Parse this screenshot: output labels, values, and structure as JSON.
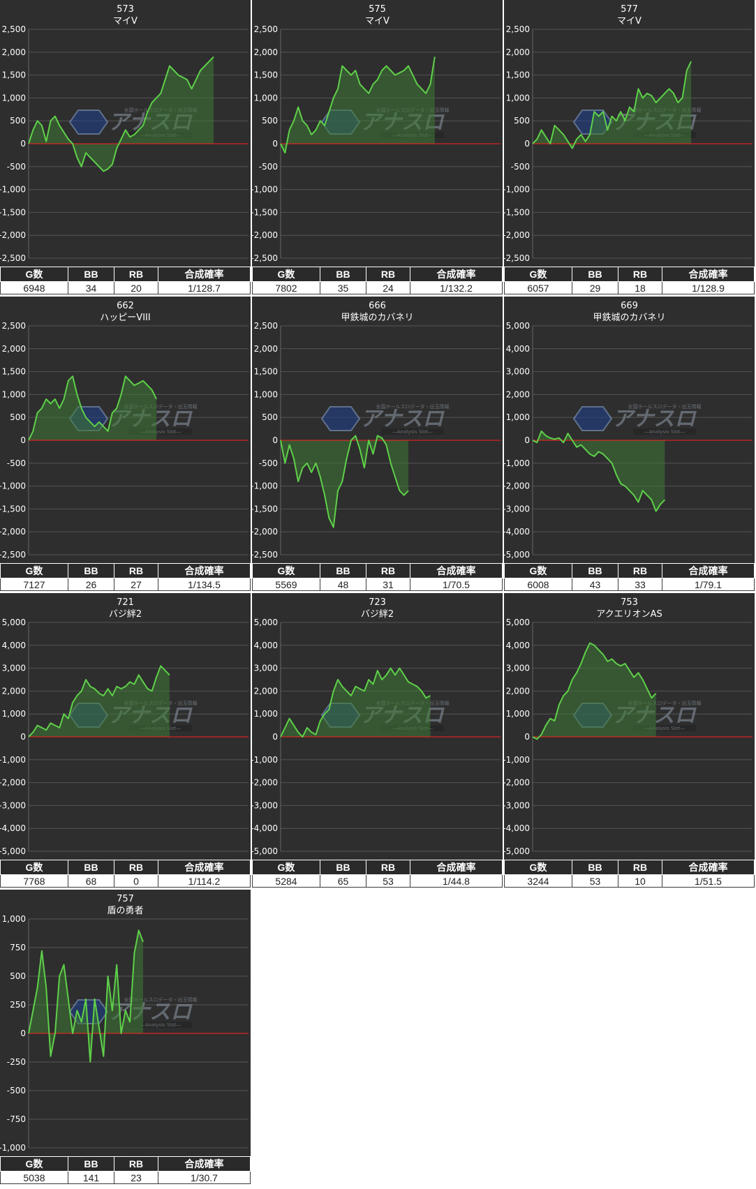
{
  "headers": {
    "games": "G数",
    "bb": "BB",
    "rb": "RB",
    "rate": "合成確率"
  },
  "watermark": {
    "logo_text": "アナスロ",
    "tagline": "全国ホールスロデータ・出玉情報",
    "sub": "—Analysis Slot—"
  },
  "colors": {
    "background": "#2e2e2e",
    "line": "#5fd04a",
    "fill": "#3e7a34",
    "zero_line": "#ff2020",
    "grid": "#555555"
  },
  "chart_data": [
    {
      "type": "area",
      "machine_number": "573",
      "machine_name": "マイV",
      "ylim": [
        -2500,
        2500
      ],
      "yticks": [
        2500,
        2000,
        1500,
        1000,
        500,
        0,
        -500,
        -1000,
        -1500,
        -2000,
        -2500
      ],
      "stats": {
        "games": "6948",
        "bb": "34",
        "rb": "20",
        "rate": "1/128.7"
      },
      "values": [
        0,
        300,
        500,
        400,
        50,
        500,
        600,
        400,
        250,
        100,
        0,
        -300,
        -500,
        -200,
        -300,
        -400,
        -500,
        -600,
        -550,
        -450,
        -100,
        100,
        300,
        150,
        200,
        300,
        400,
        700,
        900,
        1000,
        1100,
        1400,
        1700,
        1600,
        1500,
        1450,
        1400,
        1200,
        1400,
        1600,
        1700,
        1800,
        1900
      ]
    },
    {
      "type": "area",
      "machine_number": "575",
      "machine_name": "マイV",
      "ylim": [
        -2500,
        2500
      ],
      "yticks": [
        2500,
        2000,
        1500,
        1000,
        500,
        0,
        -500,
        -1000,
        -1500,
        -2000,
        -2500
      ],
      "stats": {
        "games": "7802",
        "bb": "35",
        "rb": "24",
        "rate": "1/132.2"
      },
      "values": [
        0,
        -200,
        300,
        500,
        800,
        500,
        400,
        200,
        300,
        500,
        400,
        700,
        1000,
        1200,
        1700,
        1600,
        1500,
        1600,
        1300,
        1200,
        1100,
        1300,
        1400,
        1600,
        1700,
        1600,
        1500,
        1550,
        1600,
        1700,
        1500,
        1300,
        1200,
        1100,
        1300,
        1900
      ]
    },
    {
      "type": "area",
      "machine_number": "577",
      "machine_name": "マイV",
      "ylim": [
        -2500,
        2500
      ],
      "yticks": [
        2500,
        2000,
        1500,
        1000,
        500,
        0,
        -500,
        -1000,
        -1500,
        -2000,
        -2500
      ],
      "stats": {
        "games": "6057",
        "bb": "29",
        "rb": "18",
        "rate": "1/128.9"
      },
      "values": [
        0,
        100,
        300,
        150,
        0,
        400,
        300,
        200,
        50,
        -100,
        100,
        200,
        50,
        200,
        700,
        600,
        700,
        300,
        600,
        500,
        700,
        500,
        800,
        700,
        1200,
        1000,
        1100,
        1050,
        900,
        1000,
        1100,
        1200,
        1100,
        900,
        1000,
        1600,
        1800
      ]
    },
    {
      "type": "area",
      "machine_number": "662",
      "machine_name": "ハッピーVIII",
      "ylim": [
        -2500,
        2500
      ],
      "yticks": [
        2500,
        2000,
        1500,
        1000,
        500,
        0,
        -500,
        -1000,
        -1500,
        -2000,
        -2500
      ],
      "stats": {
        "games": "7127",
        "bb": "26",
        "rb": "27",
        "rate": "1/134.5"
      },
      "values": [
        0,
        200,
        600,
        700,
        900,
        800,
        900,
        700,
        900,
        1300,
        1400,
        1000,
        700,
        500,
        400,
        300,
        400,
        300,
        200,
        600,
        700,
        1000,
        1400,
        1300,
        1200,
        1250,
        1300,
        1200,
        1100,
        900
      ]
    },
    {
      "type": "area",
      "machine_number": "666",
      "machine_name": "甲鉄城のカバネリ",
      "ylim": [
        -2500,
        2500
      ],
      "yticks": [
        2500,
        2000,
        1500,
        1000,
        500,
        0,
        -500,
        -1000,
        -1500,
        -2000,
        -2500
      ],
      "stats": {
        "games": "5569",
        "bb": "48",
        "rb": "31",
        "rate": "1/70.5"
      },
      "values": [
        0,
        -500,
        -100,
        -400,
        -900,
        -600,
        -500,
        -700,
        -500,
        -800,
        -1200,
        -1700,
        -1900,
        -1100,
        -900,
        -400,
        0,
        100,
        -200,
        -600,
        0,
        -300,
        100,
        50,
        -100,
        -500,
        -800,
        -1100,
        -1200,
        -1100
      ]
    },
    {
      "type": "area",
      "machine_number": "669",
      "machine_name": "甲鉄城のカバネリ",
      "ylim": [
        -5000,
        5000
      ],
      "yticks": [
        5000,
        4000,
        3000,
        2000,
        1000,
        0,
        -1000,
        -2000,
        -3000,
        -4000,
        -5000
      ],
      "stats": {
        "games": "6008",
        "bb": "43",
        "rb": "33",
        "rate": "1/79.1"
      },
      "values": [
        0,
        -100,
        400,
        200,
        100,
        50,
        100,
        -100,
        300,
        0,
        -300,
        -200,
        -400,
        -600,
        -700,
        -500,
        -600,
        -800,
        -1000,
        -1500,
        -1900,
        -2000,
        -2200,
        -2400,
        -2700,
        -2200,
        -2400,
        -2600,
        -3100,
        -2800,
        -2600
      ]
    },
    {
      "type": "area",
      "machine_number": "721",
      "machine_name": "バジ絆2",
      "ylim": [
        -5000,
        5000
      ],
      "yticks": [
        5000,
        4000,
        3000,
        2000,
        1000,
        0,
        -1000,
        -2000,
        -3000,
        -4000,
        -5000
      ],
      "stats": {
        "games": "7768",
        "bb": "68",
        "rb": "0",
        "rate": "1/114.2"
      },
      "values": [
        0,
        200,
        500,
        400,
        300,
        600,
        500,
        400,
        1000,
        800,
        1500,
        1800,
        2000,
        2500,
        2200,
        2100,
        1900,
        1800,
        2100,
        1800,
        2200,
        2100,
        2200,
        2400,
        2300,
        2700,
        2400,
        2100,
        2000,
        2600,
        3100,
        2900,
        2700
      ]
    },
    {
      "type": "area",
      "machine_number": "723",
      "machine_name": "バジ絆2",
      "ylim": [
        -5000,
        5000
      ],
      "yticks": [
        5000,
        4000,
        3000,
        2000,
        1000,
        0,
        -1000,
        -2000,
        -3000,
        -4000,
        -5000
      ],
      "stats": {
        "games": "5284",
        "bb": "65",
        "rb": "53",
        "rate": "1/44.8"
      },
      "values": [
        0,
        400,
        800,
        500,
        200,
        0,
        400,
        200,
        100,
        700,
        1000,
        1200,
        2000,
        2500,
        2200,
        2000,
        1800,
        2200,
        2100,
        2000,
        2500,
        2300,
        2900,
        2500,
        2700,
        3000,
        2700,
        3000,
        2700,
        2400,
        2300,
        2200,
        2000,
        1700,
        1800
      ]
    },
    {
      "type": "area",
      "machine_number": "753",
      "machine_name": "アクエリオンAS",
      "ylim": [
        -5000,
        5000
      ],
      "yticks": [
        5000,
        4000,
        3000,
        2000,
        1000,
        0,
        -1000,
        -2000,
        -3000,
        -4000,
        -5000
      ],
      "stats": {
        "games": "3244",
        "bb": "53",
        "rb": "10",
        "rate": "1/51.5"
      },
      "values": [
        0,
        -100,
        100,
        500,
        800,
        700,
        1400,
        1800,
        2000,
        2500,
        2800,
        3200,
        3700,
        4100,
        4000,
        3800,
        3600,
        3300,
        3400,
        3200,
        3100,
        3200,
        2900,
        2600,
        2800,
        2500,
        2100,
        1700,
        1900
      ]
    },
    {
      "type": "area",
      "machine_number": "757",
      "machine_name": "盾の勇者",
      "ylim": [
        -1000,
        1000
      ],
      "yticks": [
        1000,
        750,
        500,
        250,
        0,
        -250,
        -500,
        -750,
        -1000
      ],
      "stats": {
        "games": "5038",
        "bb": "141",
        "rb": "23",
        "rate": "1/30.7"
      },
      "values": [
        0,
        200,
        400,
        720,
        400,
        -200,
        0,
        500,
        600,
        300,
        0,
        200,
        100,
        300,
        -250,
        300,
        50,
        -200,
        500,
        200,
        600,
        0,
        200,
        100,
        700,
        900,
        800
      ]
    }
  ]
}
